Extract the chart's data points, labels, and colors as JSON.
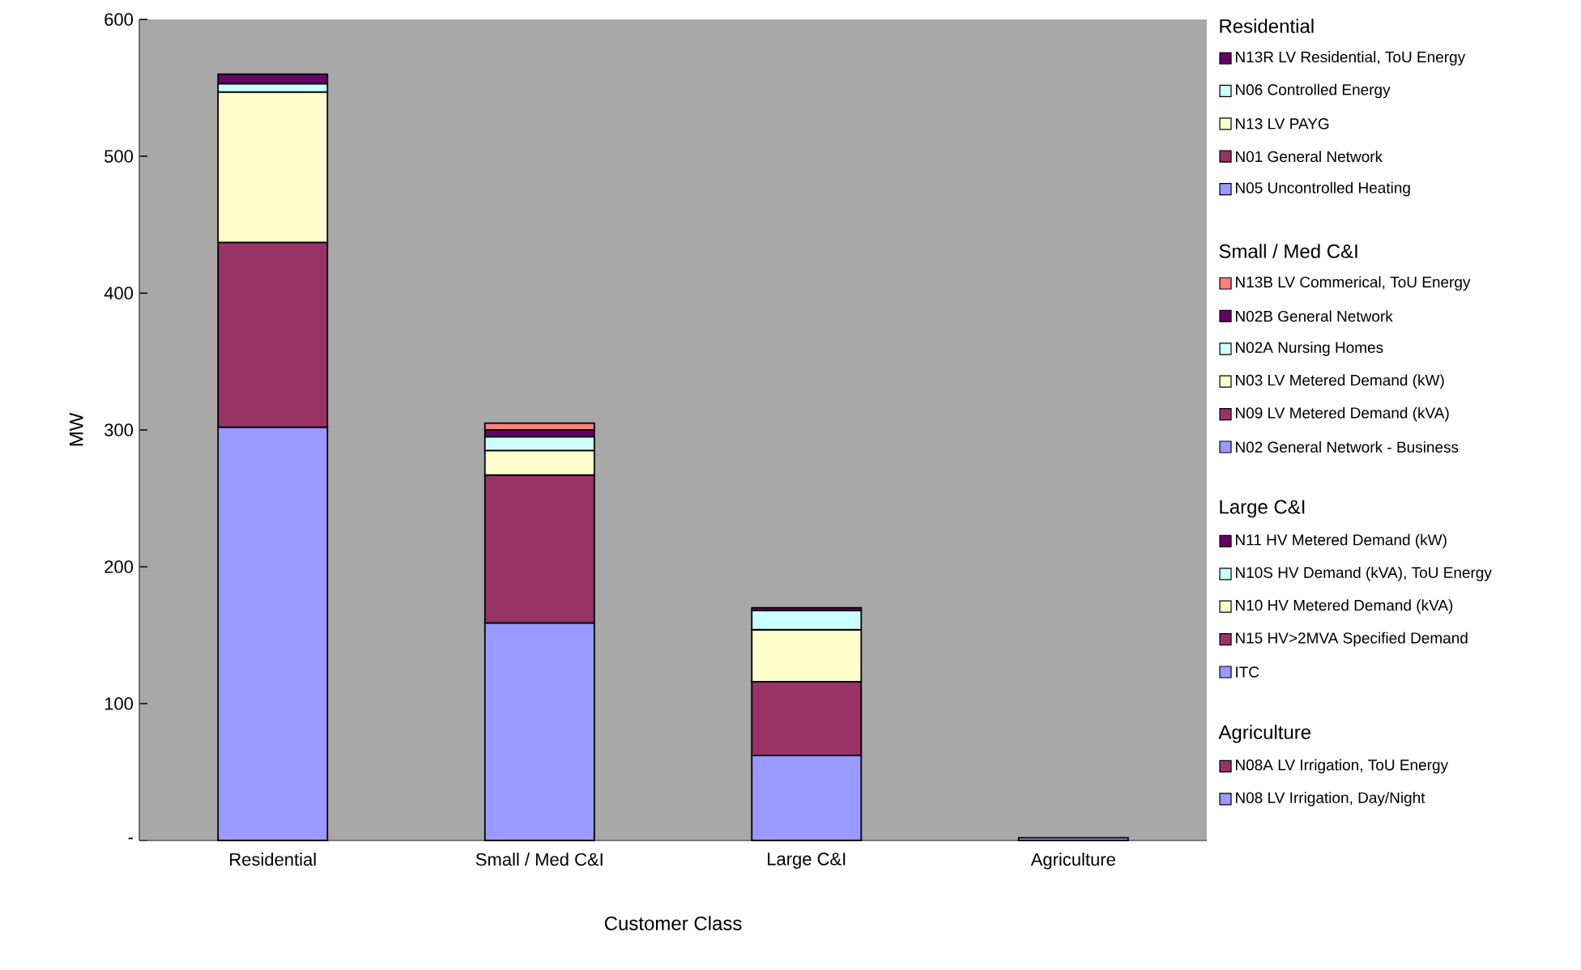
{
  "chart_data": {
    "type": "bar",
    "stacked": true,
    "xlabel": "Customer Class",
    "ylabel": "MW",
    "legend": "right",
    "categories": [
      "Residential",
      "Small / Med C&I",
      "Large C&I",
      "Agriculture"
    ],
    "ylim": [
      0,
      600
    ],
    "yticks": [
      {
        "value": 0,
        "label": "-"
      },
      100,
      200,
      300,
      400,
      500,
      600
    ],
    "series": [
      {
        "name": "N05 Uncontrolled Heating",
        "color": "#9999ff",
        "values": [
          302,
          null,
          null,
          null
        ]
      },
      {
        "name": "N01 General Network",
        "color": "#993366",
        "values": [
          135,
          null,
          null,
          null
        ]
      },
      {
        "name": "N13 LV PAYG",
        "color": "#ffffcc",
        "values": [
          110,
          null,
          null,
          null
        ]
      },
      {
        "name": "N06 Controlled Energy",
        "color": "#ccffff",
        "values": [
          6,
          null,
          null,
          null
        ]
      },
      {
        "name": "N13R LV Residential, ToU Energy",
        "color": "#660066",
        "values": [
          7,
          null,
          null,
          null
        ]
      },
      {
        "name": "N02 General Network - Business",
        "color": "#9999ff",
        "values": [
          null,
          159,
          null,
          null
        ]
      },
      {
        "name": "N09 LV Metered Demand (kVA)",
        "color": "#993366",
        "values": [
          null,
          108,
          null,
          null
        ]
      },
      {
        "name": "N03 LV Metered Demand (kW)",
        "color": "#ffffcc",
        "values": [
          null,
          18,
          null,
          null
        ]
      },
      {
        "name": "N02A Nursing Homes",
        "color": "#ccffff",
        "values": [
          null,
          10,
          null,
          null
        ]
      },
      {
        "name": "N02B General Network",
        "color": "#660066",
        "values": [
          null,
          5,
          null,
          null
        ]
      },
      {
        "name": "N13B LV Commerical, ToU Energy",
        "color": "#ff8080",
        "values": [
          null,
          5,
          null,
          null
        ]
      },
      {
        "name": "ITC",
        "color": "#9999ff",
        "values": [
          null,
          null,
          62,
          null
        ]
      },
      {
        "name": "N15 HV>2MVA Specified Demand",
        "color": "#993366",
        "values": [
          null,
          null,
          54,
          null
        ]
      },
      {
        "name": "N10 HV Metered Demand (kVA)",
        "color": "#ffffcc",
        "values": [
          null,
          null,
          38,
          null
        ]
      },
      {
        "name": "N10S HV Demand (kVA), ToU Energy",
        "color": "#ccffff",
        "values": [
          null,
          null,
          14,
          null
        ]
      },
      {
        "name": "N11 HV Metered Demand (kW)",
        "color": "#660066",
        "values": [
          null,
          null,
          2,
          null
        ]
      },
      {
        "name": "N08 LV Irrigation, Day/Night",
        "color": "#9999ff",
        "values": [
          null,
          null,
          null,
          2
        ]
      },
      {
        "name": "N08A LV Irrigation, ToU Energy",
        "color": "#993366",
        "values": [
          null,
          null,
          null,
          null
        ]
      }
    ]
  }
}
